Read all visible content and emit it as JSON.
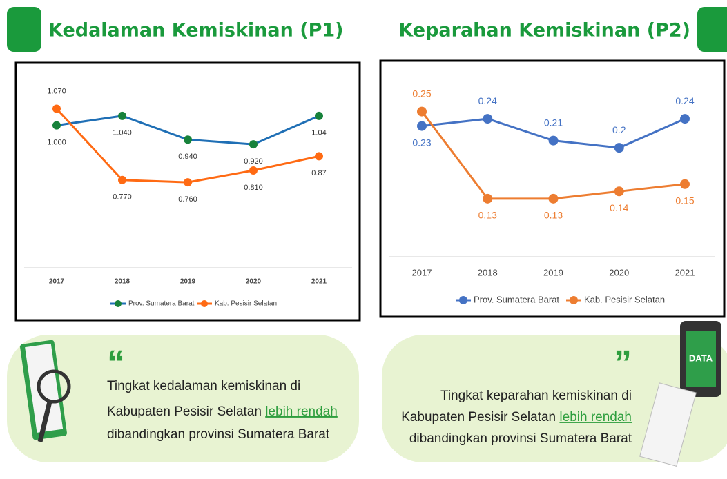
{
  "chart_data": [
    {
      "type": "line",
      "title": "Kedalaman Kemiskinan (P1)",
      "categories": [
        "2017",
        "2018",
        "2019",
        "2020",
        "2021"
      ],
      "ylim": [
        0.4,
        1.15
      ],
      "series": [
        {
          "name": "Prov. Sumatera Barat",
          "color": "#1f6fb5",
          "marker_color": "#17823b",
          "values": [
            1.0,
            1.04,
            0.94,
            0.92,
            1.04
          ],
          "value_labels": [
            "1.000",
            "1.040",
            "0.940",
            "0.920",
            "1.04"
          ]
        },
        {
          "name": "Kab. Pesisir Selatan",
          "color": "#ff6a13",
          "marker_color": "#ff6a13",
          "values": [
            1.07,
            0.77,
            0.76,
            0.81,
            0.87
          ],
          "value_labels": [
            "1.070",
            "0.770",
            "0.760",
            "0.810",
            "0.87"
          ]
        }
      ]
    },
    {
      "type": "line",
      "title": "Keparahan Kemiskinan (P2)",
      "categories": [
        "2017",
        "2018",
        "2019",
        "2020",
        "2021"
      ],
      "ylim": [
        0.05,
        0.28
      ],
      "series": [
        {
          "name": "Prov. Sumatera Barat",
          "color": "#4472c4",
          "marker_color": "#4472c4",
          "values": [
            0.23,
            0.24,
            0.21,
            0.2,
            0.24
          ]
        },
        {
          "name": "Kab. Pesisir Selatan",
          "color": "#ed7d31",
          "marker_color": "#ed7d31",
          "values": [
            0.25,
            0.13,
            0.13,
            0.14,
            0.15
          ]
        }
      ]
    }
  ],
  "notes": [
    {
      "quote": "“",
      "line1": "Tingkat kedalaman kemiskinan di",
      "line2": "Kabupaten Pesisir Selatan",
      "emphasis": "lebih rendah",
      "line3": "dibandingkan provinsi Sumatera Barat"
    },
    {
      "quote": "”",
      "line1": "Tingkat keparahan kemiskinan di",
      "line2": "Kabupaten Pesisir Selatan",
      "emphasis": "lebih rendah",
      "line3": "dibandingkan provinsi Sumatera Barat"
    }
  ]
}
